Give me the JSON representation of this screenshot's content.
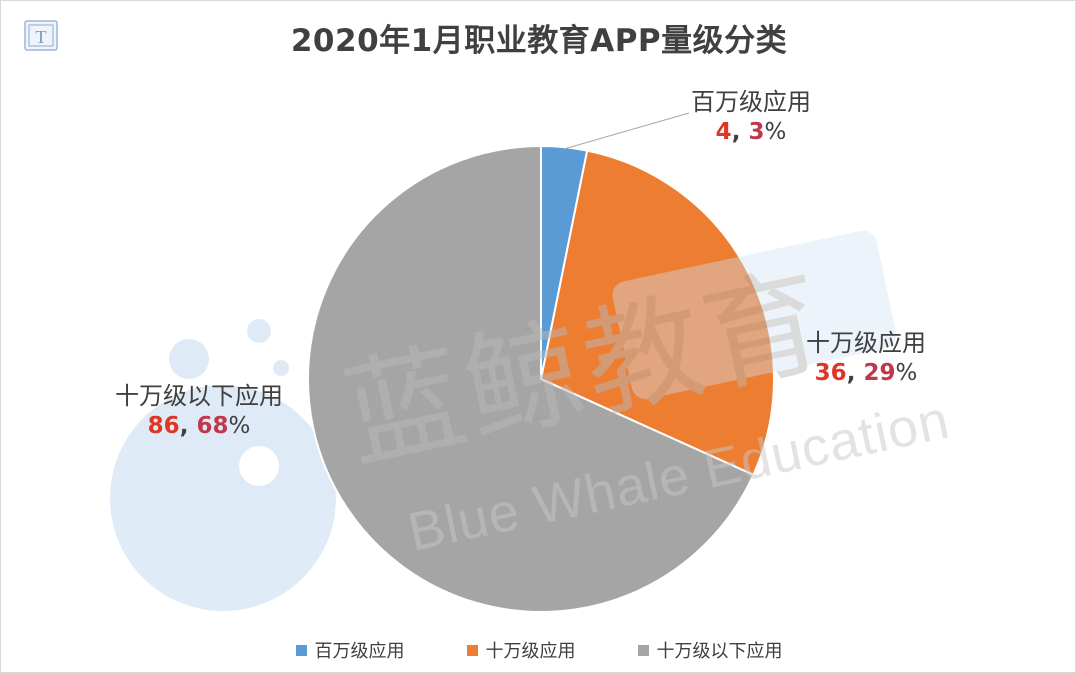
{
  "watermark": {
    "cn": "蓝鲸教育",
    "en": "Blue Whale Education"
  },
  "chart_data": {
    "type": "pie",
    "title": "2020年1月职业教育APP量级分类",
    "slices": [
      {
        "label": "百万级应用",
        "value": 4,
        "percent": 3,
        "color": "#5b9bd5"
      },
      {
        "label": "十万级应用",
        "value": 36,
        "percent": 29,
        "color": "#ed7d31"
      },
      {
        "label": "十万级以下应用",
        "value": 86,
        "percent": 68,
        "color": "#a5a5a5"
      }
    ],
    "legend": [
      "百万级应用",
      "十万级应用",
      "十万级以下应用"
    ],
    "legend_position": "bottom"
  }
}
